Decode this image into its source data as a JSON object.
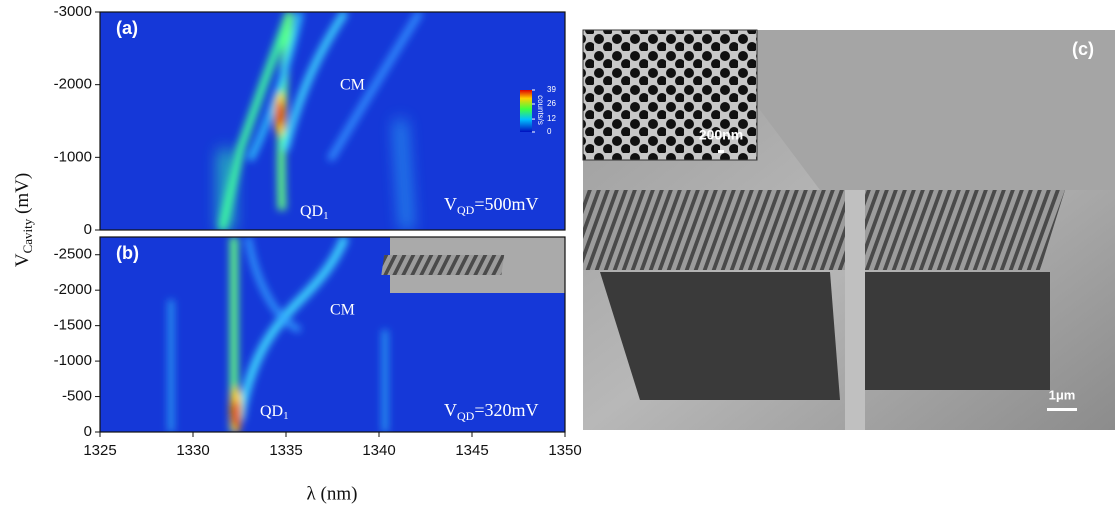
{
  "figure": {
    "y_label": {
      "main": "V",
      "sub": "Cavity",
      "unit": "(mV)"
    },
    "x_label": "λ (nm)",
    "xlim": [
      1325,
      1350
    ],
    "xticks": [
      1325,
      1330,
      1335,
      1340,
      1345,
      1350
    ],
    "panels": [
      {
        "label": "(a)",
        "ylim": [
          0,
          -3000
        ],
        "yticks": [
          0,
          -1000,
          -2000,
          -3000
        ],
        "cm": "CM",
        "qd": {
          "main": "QD",
          "sub": "1"
        },
        "vqd": {
          "main": "V",
          "sub": "QD",
          "rest": "=500mV"
        },
        "colorbar": {
          "label": "counts/s",
          "ticks": [
            0,
            12,
            26,
            39
          ]
        }
      },
      {
        "label": "(b)",
        "ylim": [
          0,
          -2750
        ],
        "yticks": [
          0,
          -500,
          -1000,
          -1500,
          -2000,
          -2500
        ],
        "cm": "CM",
        "qd": {
          "main": "QD",
          "sub": "1"
        },
        "vqd": {
          "main": "V",
          "sub": "QD",
          "rest": "=320mV"
        }
      }
    ],
    "panel_c": {
      "label": "(c)",
      "inset_scale": "200nm",
      "scale": "1μm"
    }
  }
}
